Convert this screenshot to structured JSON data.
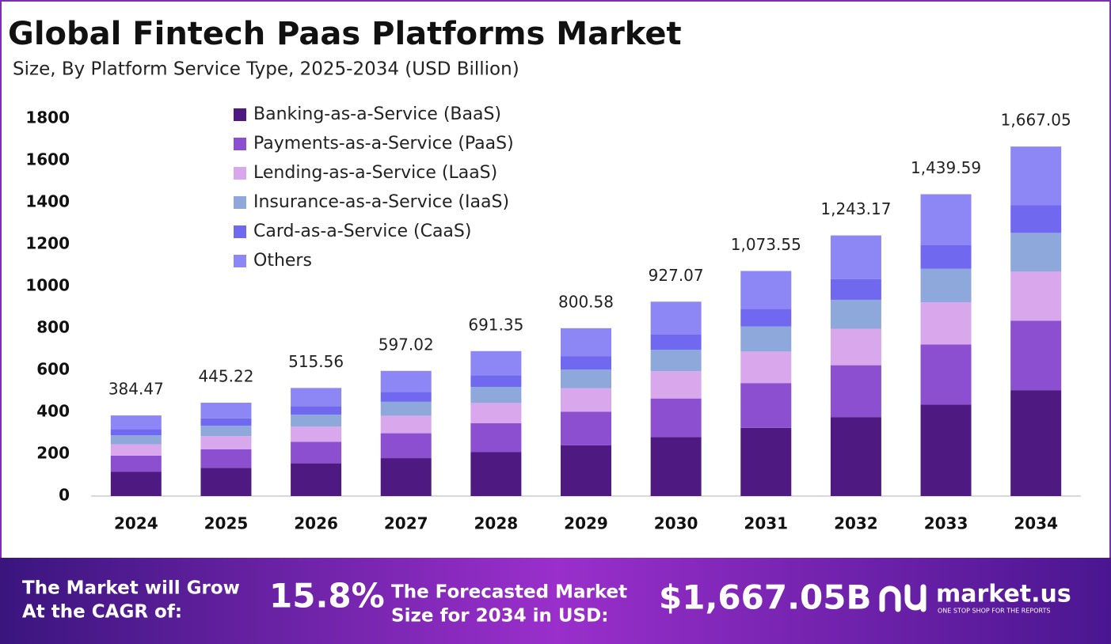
{
  "chart_data": {
    "type": "stacked-bar",
    "title": "Global Fintech Paas Platforms Market",
    "subtitle": "Size, By Platform Service Type, 2025-2034 (USD Billion)",
    "categories": [
      "2024",
      "2025",
      "2026",
      "2027",
      "2028",
      "2029",
      "2030",
      "2031",
      "2032",
      "2033",
      "2034"
    ],
    "series": [
      {
        "name": "Banking-as-a-Service (BaaS)",
        "color": "#4e1a82",
        "values": [
          116.5,
          134.9,
          156.2,
          180.9,
          209.5,
          242.6,
          280.9,
          325.3,
          376.7,
          436.2,
          505.1
        ]
      },
      {
        "name": "Payments-as-a-Service (PaaS)",
        "color": "#8c4fcf",
        "values": [
          76.5,
          88.6,
          102.6,
          118.8,
          137.6,
          159.3,
          184.5,
          213.6,
          247.4,
          286.5,
          331.7
        ]
      },
      {
        "name": "Lending-as-a-Service (LaaS)",
        "color": "#d9a8ec",
        "values": [
          53.8,
          62.3,
          72.2,
          83.6,
          96.8,
          112.1,
          129.8,
          150.3,
          174.0,
          201.5,
          233.4
        ]
      },
      {
        "name": "Insurance-as-a-Service (IaaS)",
        "color": "#8fa8dc",
        "values": [
          42.7,
          49.4,
          57.2,
          66.3,
          76.7,
          88.9,
          102.9,
          119.2,
          138.0,
          159.8,
          185.0
        ]
      },
      {
        "name": "Card-as-a-Service (CaaS)",
        "color": "#7168f0",
        "values": [
          30.4,
          35.2,
          40.7,
          47.2,
          54.6,
          63.2,
          73.2,
          84.8,
          98.2,
          113.7,
          131.7
        ]
      },
      {
        "name": "Others",
        "color": "#8d86f5",
        "values": [
          64.6,
          74.8,
          86.7,
          100.2,
          116.2,
          134.5,
          155.8,
          180.4,
          208.9,
          241.9,
          280.2
        ]
      }
    ],
    "totals": {
      "values": [
        384.47,
        445.22,
        515.56,
        597.02,
        691.35,
        800.58,
        927.07,
        1073.55,
        1243.17,
        1439.59,
        1667.05
      ],
      "value_labels": [
        "384.47",
        "445.22",
        "515.56",
        "597.02",
        "691.35",
        "800.58",
        "927.07",
        "1,073.55",
        "1,243.17",
        "1,439.59",
        "1,667.05"
      ]
    },
    "ylim": [
      0,
      1800
    ],
    "yticks": [
      0,
      200,
      400,
      600,
      800,
      1000,
      1200,
      1400,
      1600,
      1800
    ],
    "grid": false,
    "legend": "top-left"
  },
  "footer": {
    "cagr_text": [
      "The Market will Grow",
      "At the CAGR of:"
    ],
    "cagr_value": "15.8%",
    "forecast_text": [
      "The Forecasted Market",
      "Size for 2034 in USD:"
    ],
    "forecast_value": "$1,667.05B",
    "brand": "market.us",
    "tagline": "ONE STOP SHOP FOR THE REPORTS"
  }
}
